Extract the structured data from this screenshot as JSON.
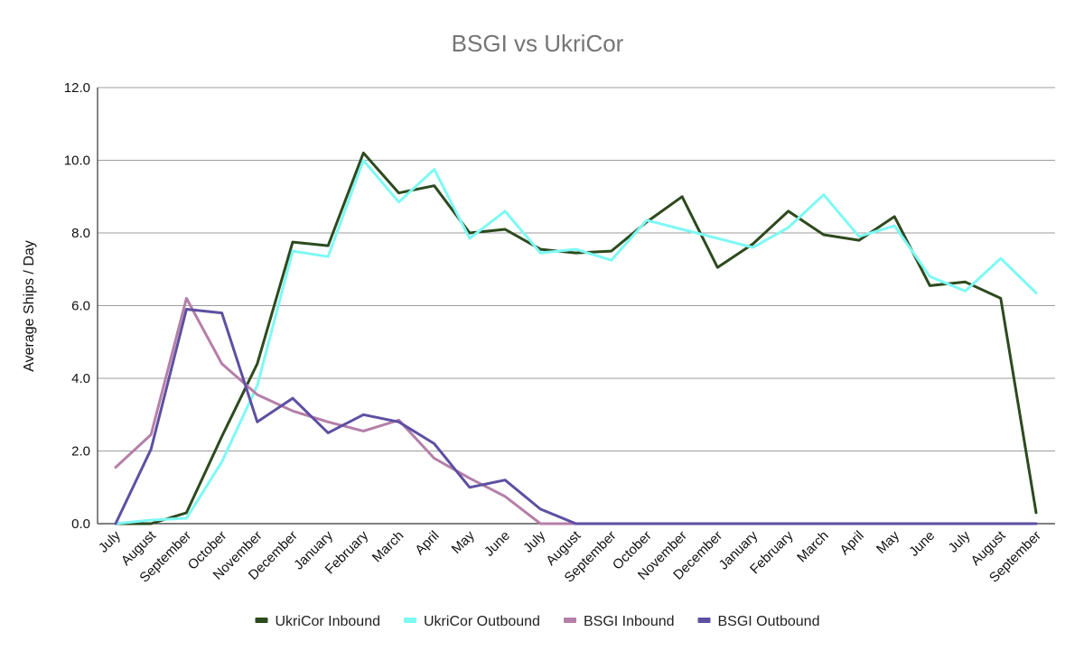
{
  "chart_data": {
    "type": "line",
    "title": "BSGI vs UkriCor",
    "xlabel": "",
    "ylabel": "Average Ships / Day",
    "ylim": [
      0,
      12
    ],
    "yticks": [
      "0.0",
      "2.0",
      "4.0",
      "6.0",
      "8.0",
      "10.0",
      "12.0"
    ],
    "grid": true,
    "legend_position": "bottom",
    "categories": [
      "July",
      "August",
      "September",
      "October",
      "November",
      "December",
      "January",
      "February",
      "March",
      "April",
      "May",
      "June",
      "July",
      "August",
      "September",
      "October",
      "November",
      "December",
      "January",
      "February",
      "March",
      "April",
      "May",
      "June",
      "July",
      "August",
      "September"
    ],
    "series": [
      {
        "name": "UkriCor Inbound",
        "color": "#2d4a1e",
        "values": [
          0.0,
          0.0,
          0.3,
          2.4,
          4.4,
          7.75,
          7.65,
          10.2,
          9.1,
          9.3,
          8.0,
          8.1,
          7.55,
          7.45,
          7.5,
          8.3,
          9.0,
          7.05,
          7.7,
          8.6,
          7.95,
          7.8,
          8.45,
          6.55,
          6.65,
          6.2,
          0.3
        ]
      },
      {
        "name": "UkriCor Outbound",
        "color": "#7df9f4",
        "values": [
          0.0,
          0.1,
          0.15,
          1.7,
          3.8,
          7.5,
          7.35,
          10.0,
          8.85,
          9.75,
          7.85,
          8.6,
          7.45,
          7.55,
          7.25,
          8.35,
          8.1,
          7.85,
          7.6,
          8.15,
          9.05,
          7.9,
          8.2,
          6.8,
          6.4,
          7.3,
          6.35
        ]
      },
      {
        "name": "BSGI Inbound",
        "color": "#b57fa8",
        "values": [
          1.55,
          2.45,
          6.2,
          4.4,
          3.55,
          3.1,
          2.8,
          2.55,
          2.85,
          1.8,
          1.25,
          0.75,
          0.0,
          0.0,
          0.0,
          0.0,
          0.0,
          0.0,
          0.0,
          0.0,
          0.0,
          0.0,
          0.0,
          0.0,
          0.0,
          0.0,
          0.0
        ]
      },
      {
        "name": "BSGI Outbound",
        "color": "#5e4fa2",
        "values": [
          0.0,
          2.05,
          5.9,
          5.8,
          2.8,
          3.45,
          2.5,
          3.0,
          2.8,
          2.2,
          1.0,
          1.2,
          0.4,
          0.0,
          0.0,
          0.0,
          0.0,
          0.0,
          0.0,
          0.0,
          0.0,
          0.0,
          0.0,
          0.0,
          0.0,
          0.0,
          0.0
        ]
      }
    ]
  }
}
